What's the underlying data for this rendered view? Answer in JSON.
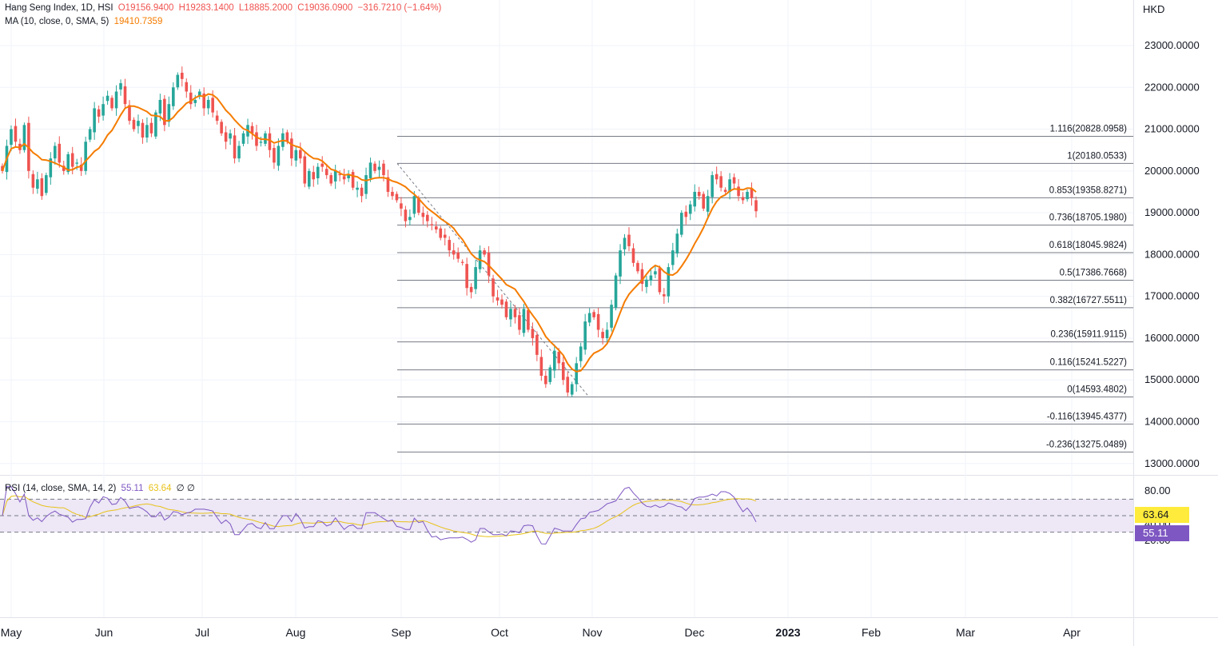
{
  "header": {
    "symbol": "Hang Seng Index, 1D, HSI",
    "open": "O19156.9400",
    "high": "H19283.1400",
    "low": "L18885.2000",
    "close": "C19036.0900",
    "change": "−316.7210 (−1.64%)",
    "ma_label": "MA (10, close, 0, SMA, 5)",
    "ma_value": "19410.7359",
    "rsi_label": "RSI (14, close, SMA, 14, 2)",
    "rsi_value": "55.11",
    "rsi_ma_value": "63.64",
    "rsi_extra": "∅ ∅"
  },
  "currency": "HKD",
  "colors": {
    "up": "#26a69a",
    "down": "#ef5350",
    "ma": "#f57c00",
    "rsi": "#7e57c2",
    "rsi_ma": "#e8c21a",
    "band": "#ede7f6"
  },
  "chart_data": [
    {
      "type": "candlestick",
      "title": "Hang Seng Index, 1D, HSI",
      "ylim": [
        12800,
        23600
      ],
      "y_ticks": [
        "23000.0000",
        "22000.0000",
        "21000.0000",
        "20000.0000",
        "19000.0000",
        "18000.0000",
        "17000.0000",
        "16000.0000",
        "15000.0000",
        "14000.0000",
        "13000.0000"
      ],
      "x_ticks": [
        "May",
        "Jun",
        "Jul",
        "Aug",
        "Sep",
        "Oct",
        "Nov",
        "Dec",
        "2023",
        "Feb",
        "Mar",
        "Apr"
      ],
      "close_series": [
        20000,
        20600,
        21000,
        20700,
        20500,
        21100,
        20000,
        19600,
        19800,
        19400,
        19900,
        20300,
        20600,
        20200,
        20000,
        20400,
        20100,
        20200,
        20000,
        20700,
        21000,
        21500,
        21300,
        21600,
        21800,
        21500,
        21900,
        22100,
        21600,
        21200,
        21000,
        21200,
        20800,
        21100,
        20900,
        21400,
        21700,
        21100,
        21600,
        22000,
        22300,
        22200,
        21900,
        21600,
        21700,
        21900,
        21500,
        21700,
        21400,
        21200,
        20900,
        20700,
        20900,
        20300,
        20600,
        20900,
        21100,
        20900,
        20600,
        20700,
        20900,
        20500,
        20200,
        20600,
        20900,
        20700,
        20300,
        20500,
        20300,
        19700,
        20000,
        19800,
        20100,
        20100,
        19900,
        19700,
        20000,
        19900,
        19800,
        19900,
        19600,
        19600,
        19400,
        19900,
        20200,
        20000,
        20100,
        19900,
        19500,
        19400,
        19300,
        19100,
        18800,
        18900,
        19400,
        19000,
        18900,
        18800,
        18700,
        18600,
        18400,
        18400,
        18100,
        18000,
        17900,
        17800,
        17200,
        17100,
        17700,
        18100,
        18000,
        17500,
        17000,
        16900,
        16800,
        16500,
        16700,
        16500,
        16200,
        16700,
        16200,
        16000,
        15600,
        15100,
        14900,
        15300,
        15700,
        15400,
        15000,
        14700,
        14900,
        15400,
        15800,
        16400,
        16600,
        16500,
        16200,
        16000,
        16200,
        16800,
        17500,
        18100,
        18400,
        18200,
        17800,
        17600,
        17300,
        17400,
        17500,
        17600,
        17100,
        17000,
        17700,
        18100,
        18500,
        19000,
        18900,
        19200,
        19500,
        19400,
        19100,
        19400,
        19900,
        19800,
        19600,
        19500,
        19800,
        19700,
        19400,
        19300,
        19500,
        19350,
        19036
      ],
      "fibonacci": [
        {
          "label": "1.116(20828.0958)",
          "value": 20828.0958
        },
        {
          "label": "1(20180.0533)",
          "value": 20180.0533
        },
        {
          "label": "0.853(19358.8271)",
          "value": 19358.8271
        },
        {
          "label": "0.736(18705.1980)",
          "value": 18705.198
        },
        {
          "label": "0.618(18045.9824)",
          "value": 18045.9824
        },
        {
          "label": "0.5(17386.7668)",
          "value": 17386.7668
        },
        {
          "label": "0.382(16727.5511)",
          "value": 16727.5511
        },
        {
          "label": "0.236(15911.9115)",
          "value": 15911.9115
        },
        {
          "label": "0.116(15241.5227)",
          "value": 15241.5227
        },
        {
          "label": "0(14593.4802)",
          "value": 14593.4802
        },
        {
          "label": "-0.116(13945.4377)",
          "value": 13945.4377
        },
        {
          "label": "-0.236(13275.0489)",
          "value": 13275.0489
        }
      ]
    },
    {
      "type": "line",
      "title": "RSI (14, close, SMA, 14, 2)",
      "ylim": [
        10,
        88
      ],
      "y_ticks": [
        "80.00",
        "40.00",
        "20.00"
      ],
      "band": [
        30,
        70
      ],
      "midline": 50,
      "current": {
        "rsi": "55.11",
        "rsi_ma": "63.64"
      }
    }
  ]
}
